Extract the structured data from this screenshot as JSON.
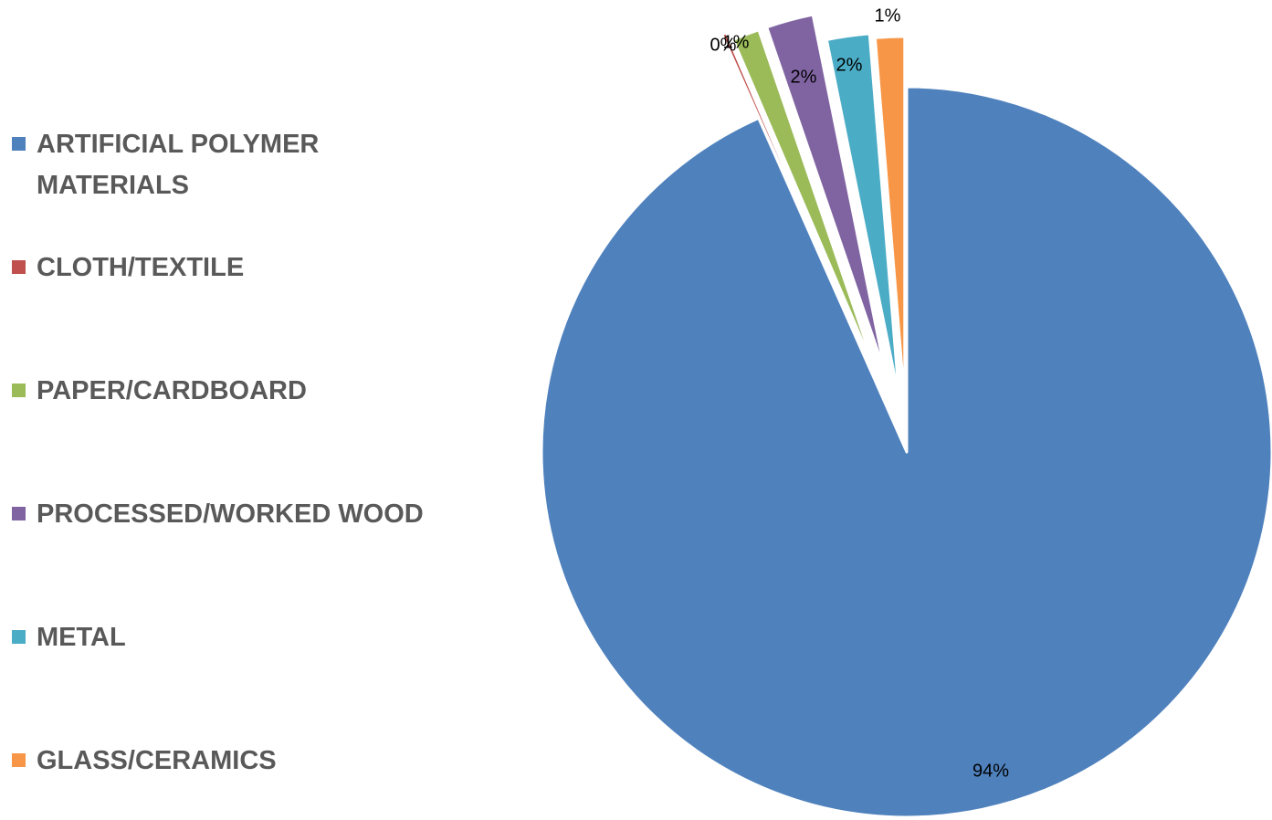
{
  "chart_data": {
    "type": "pie",
    "title": "",
    "categories": [
      "ARTIFICIAL POLYMER MATERIALS",
      "CLOTH/TEXTILE",
      "PAPER/CARDBOARD",
      "PROCESSED/WORKED WOOD",
      "METAL",
      "GLASS/CERAMICS"
    ],
    "values": [
      94.1,
      0.2,
      1.2,
      2.1,
      1.9,
      1.3
    ],
    "data_labels": [
      "94%",
      "0%",
      "1%",
      "2%",
      "2%",
      "1%"
    ],
    "colors": [
      "#4F81BD",
      "#C0504D",
      "#9BBB59",
      "#8064A2",
      "#4BACC6",
      "#F79646"
    ],
    "exploded_slices": [
      1,
      2,
      3,
      4,
      5
    ],
    "legend_position": "left",
    "start_angle": "12 o'clock, clockwise"
  }
}
